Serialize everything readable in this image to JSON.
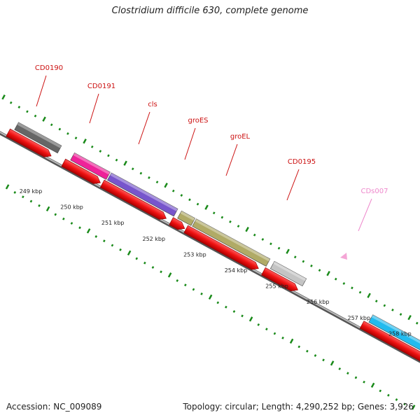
{
  "title": "Clostridium difficile 630, complete genome",
  "footer": {
    "accession": "Accession: NC_009089",
    "summary": "Topology: circular; Length: 4,290,252 bp; Genes: 3,926"
  },
  "colors": {
    "backbone": "#8a8a8a",
    "tick": "#1a8a1a",
    "label_red": "#cc1111",
    "label_pink": "#ee88cc",
    "cds_red": "#ee1111"
  },
  "scale_labels": [
    "249 kbp",
    "250 kbp",
    "251 kbp",
    "252 kbp",
    "253 kbp",
    "254 kbp",
    "255 kbp",
    "256 kbp",
    "257 kbp",
    "258 kbp"
  ],
  "genes": [
    {
      "name": "CD0190",
      "color": "#666666",
      "label_color": "#cc1111"
    },
    {
      "name": "CD0191",
      "color": "#ee2299",
      "label_color": "#cc1111"
    },
    {
      "name": "cls",
      "color": "#7755cc",
      "label_color": "#cc1111"
    },
    {
      "name": "groES",
      "color": "#b0aa66",
      "label_color": "#cc1111"
    },
    {
      "name": "groEL",
      "color": "#b0aa66",
      "label_color": "#cc1111"
    },
    {
      "name": "CD0195",
      "color": "#c4c4c4",
      "label_color": "#cc1111"
    },
    {
      "name": "CDs007",
      "color": "#22bbee",
      "label_color": "#ee88cc"
    }
  ]
}
